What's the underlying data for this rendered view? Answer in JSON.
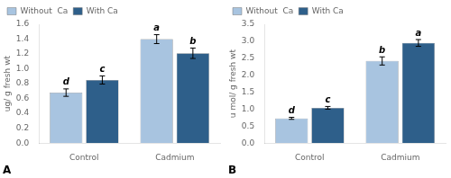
{
  "chart_data": [
    {
      "type": "bar",
      "panel_label": "A",
      "ylabel": "ug/ g fresh wt",
      "categories": [
        "Control",
        "Cadmium"
      ],
      "series": [
        {
          "name": "Without  Ca",
          "color": "#a8c4e0",
          "values": [
            0.68,
            1.4
          ],
          "errors": [
            0.05,
            0.06
          ],
          "letters": [
            "d",
            "a"
          ]
        },
        {
          "name": "With Ca",
          "color": "#2e5f8a",
          "values": [
            0.85,
            1.21
          ],
          "errors": [
            0.055,
            0.07
          ],
          "letters": [
            "c",
            "b"
          ]
        }
      ],
      "ylim": [
        0,
        1.6
      ],
      "yticks": [
        {
          "value": 0.0,
          "label": "0.0"
        },
        0.2,
        0.4,
        0.6,
        0.8,
        {
          "value": 1.0,
          "label": "1.0"
        },
        1.2,
        1.4,
        1.6
      ],
      "grid": false,
      "legend": "upper left"
    },
    {
      "type": "bar",
      "panel_label": "B",
      "ylabel": "u mol/ g fresh wt",
      "categories": [
        "Control",
        "Cadmium"
      ],
      "series": [
        {
          "name": "Without  Ca",
          "color": "#a8c4e0",
          "values": [
            0.73,
            2.42
          ],
          "errors": [
            0.03,
            0.12
          ],
          "letters": [
            "d",
            "b"
          ]
        },
        {
          "name": "With Ca",
          "color": "#2e5f8a",
          "values": [
            1.04,
            2.95
          ],
          "errors": [
            0.04,
            0.1
          ],
          "letters": [
            "c",
            "a"
          ]
        }
      ],
      "ylim": [
        0,
        3.5
      ],
      "yticks": [
        {
          "value": 0.0,
          "label": "0.0"
        },
        0.5,
        {
          "value": 1.0,
          "label": "1.0"
        },
        1.5,
        {
          "value": 2.0,
          "label": "2.0"
        },
        2.5,
        {
          "value": 3.0,
          "label": "3.0"
        },
        3.5
      ],
      "grid": false,
      "legend": "upper left"
    }
  ]
}
